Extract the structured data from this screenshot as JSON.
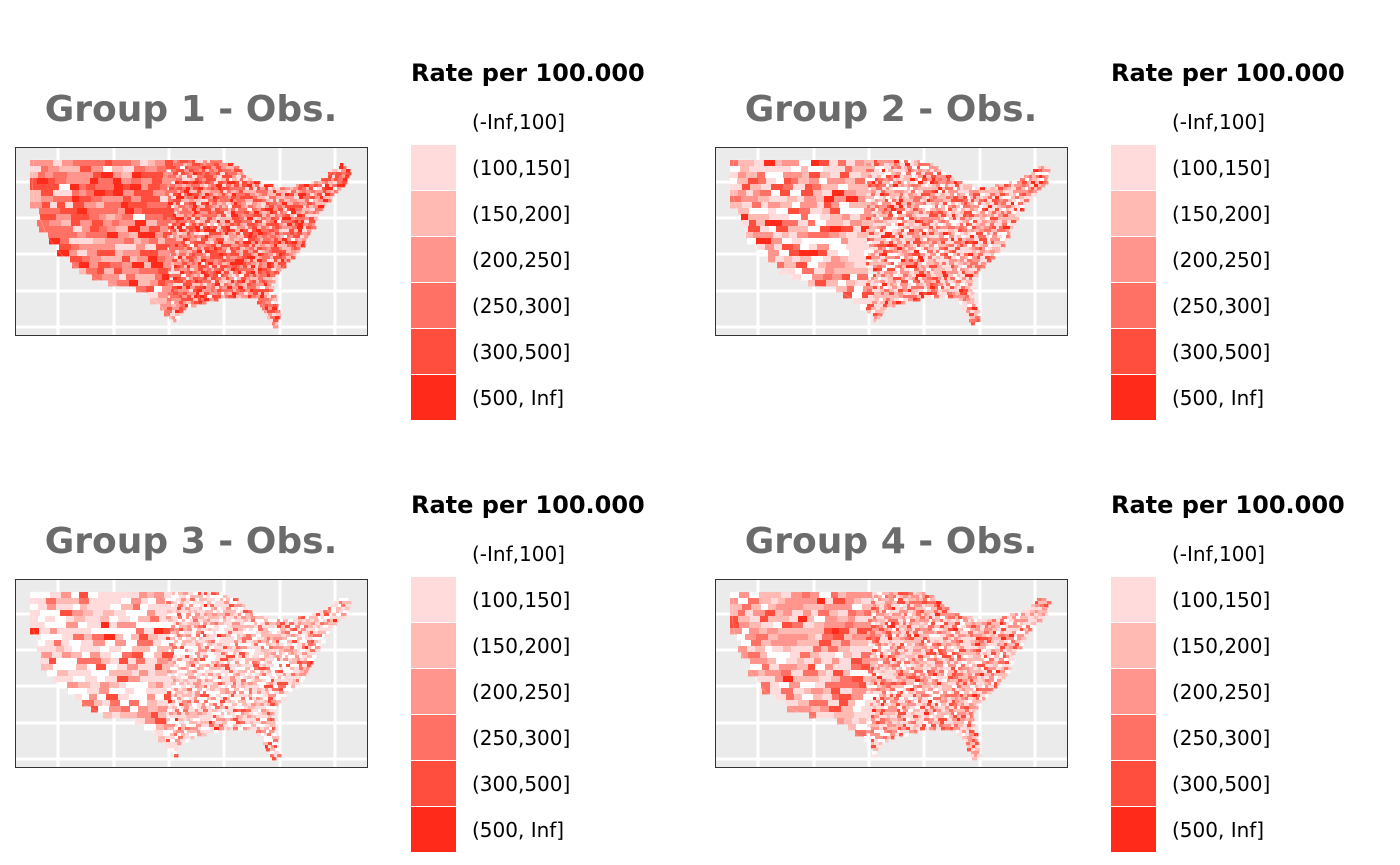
{
  "legend": {
    "title": "Rate per 100.000",
    "bins": [
      {
        "label": "(-Inf,100]",
        "color": "#ffffff"
      },
      {
        "label": "(100,150]",
        "color": "#ffdcdb"
      },
      {
        "label": "(150,200]",
        "color": "#ffbab4"
      },
      {
        "label": "(200,250]",
        "color": "#ff958c"
      },
      {
        "label": "(250,300]",
        "color": "#ff7164"
      },
      {
        "label": "(300,500]",
        "color": "#ff4d3e"
      },
      {
        "label": "(500, Inf]",
        "color": "#ff2a1a"
      }
    ]
  },
  "panels": [
    {
      "title": "Group 1 - Obs.",
      "bin_weights": [
        0.02,
        0.08,
        0.14,
        0.2,
        0.24,
        0.22,
        0.1
      ]
    },
    {
      "title": "Group 2 - Obs.",
      "bin_weights": [
        0.12,
        0.22,
        0.2,
        0.18,
        0.14,
        0.1,
        0.04
      ]
    },
    {
      "title": "Group 3 - Obs.",
      "bin_weights": [
        0.24,
        0.3,
        0.2,
        0.12,
        0.08,
        0.05,
        0.01
      ]
    },
    {
      "title": "Group 4 - Obs.",
      "bin_weights": [
        0.1,
        0.22,
        0.24,
        0.2,
        0.13,
        0.09,
        0.02
      ]
    }
  ]
}
